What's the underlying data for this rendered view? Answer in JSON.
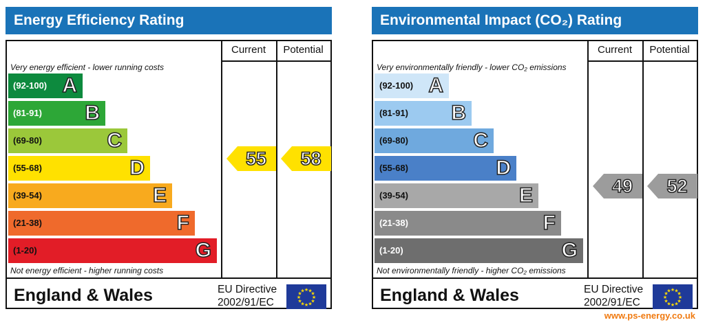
{
  "chart_data": [
    {
      "type": "bar",
      "title": "Energy Efficiency Rating",
      "columns": [
        "Current",
        "Potential"
      ],
      "top_note": "Very energy efficient - lower running costs",
      "bottom_note": "Not energy efficient - higher running costs",
      "bands": [
        {
          "range": "(92-100)",
          "letter": "A",
          "color": "#0d8a3e",
          "range_color": "#ffffff"
        },
        {
          "range": "(81-91)",
          "letter": "B",
          "color": "#2da737",
          "range_color": "#ffffff"
        },
        {
          "range": "(69-80)",
          "letter": "C",
          "color": "#9bc83a",
          "range_color": "#111111"
        },
        {
          "range": "(55-68)",
          "letter": "D",
          "color": "#ffe100",
          "range_color": "#111111"
        },
        {
          "range": "(39-54)",
          "letter": "E",
          "color": "#f8aa1e",
          "range_color": "#111111"
        },
        {
          "range": "(21-38)",
          "letter": "F",
          "color": "#ef6a2c",
          "range_color": "#111111"
        },
        {
          "range": "(1-20)",
          "letter": "G",
          "color": "#e21d27",
          "range_color": "#111111"
        }
      ],
      "current": 55,
      "potential": 58,
      "arrow_color": "#ffe100",
      "country": "England & Wales",
      "directive": [
        "EU Directive",
        "2002/91/EC"
      ]
    },
    {
      "type": "bar",
      "title": "Environmental Impact (CO₂) Rating",
      "columns": [
        "Current",
        "Potential"
      ],
      "top_note": "Very environmentally friendly - lower CO₂ emissions",
      "bottom_note": "Not environmentally friendly - higher CO₂ emissions",
      "bands": [
        {
          "range": "(92-100)",
          "letter": "A",
          "color": "#cfe6f8",
          "range_color": "#111111"
        },
        {
          "range": "(81-91)",
          "letter": "B",
          "color": "#9ccaf0",
          "range_color": "#111111"
        },
        {
          "range": "(69-80)",
          "letter": "C",
          "color": "#6fa9de",
          "range_color": "#111111"
        },
        {
          "range": "(55-68)",
          "letter": "D",
          "color": "#4a80c8",
          "range_color": "#111111"
        },
        {
          "range": "(39-54)",
          "letter": "E",
          "color": "#a8a8a8",
          "range_color": "#111111"
        },
        {
          "range": "(21-38)",
          "letter": "F",
          "color": "#8a8a8a",
          "range_color": "#ffffff"
        },
        {
          "range": "(1-20)",
          "letter": "G",
          "color": "#6e6e6e",
          "range_color": "#ffffff"
        }
      ],
      "current": 49,
      "potential": 52,
      "arrow_color": "#9c9c9c",
      "country": "England & Wales",
      "directive": [
        "EU Directive",
        "2002/91/EC"
      ]
    }
  ],
  "website": "www.ps-energy.co.uk",
  "flag_icon": "eu-flag-icon"
}
